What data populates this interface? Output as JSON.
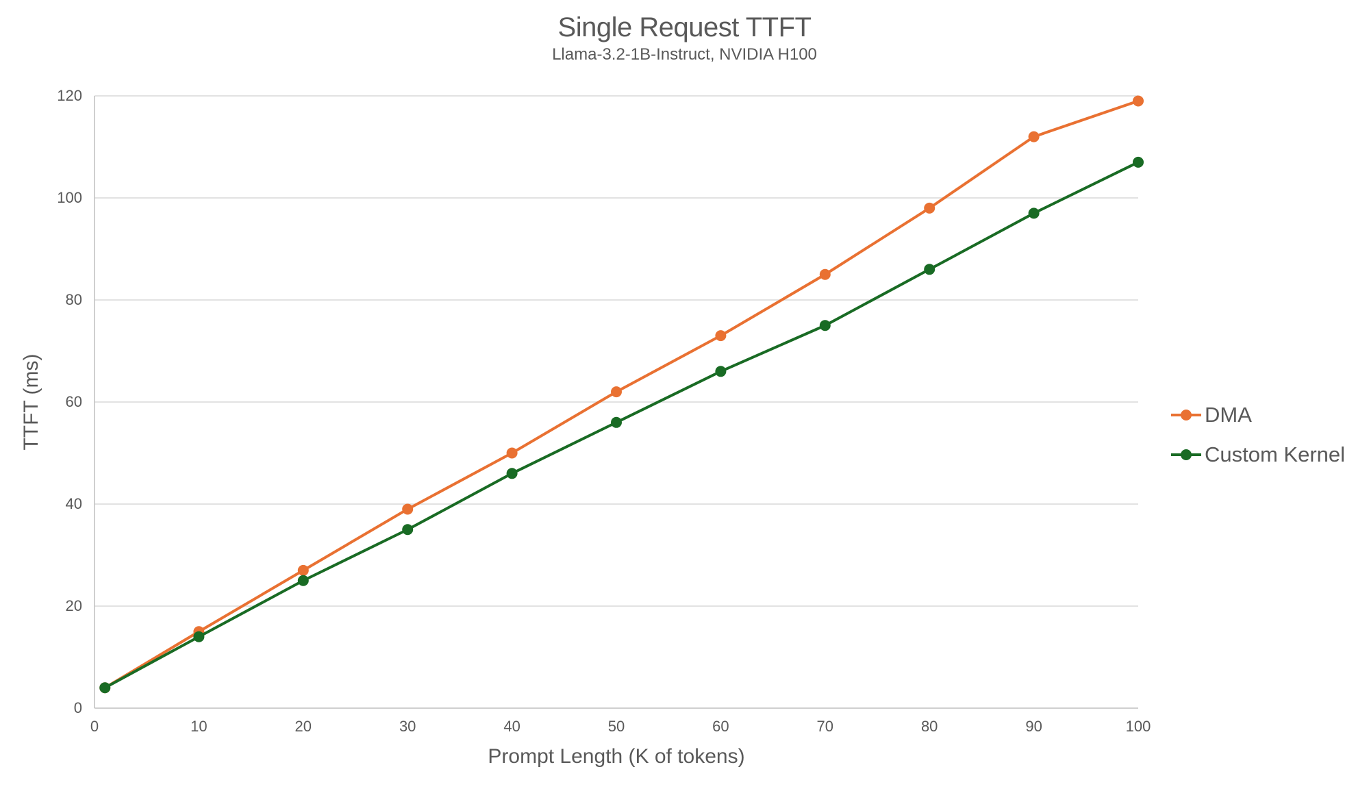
{
  "chart_data": {
    "type": "line",
    "title": "Single Request TTFT",
    "subtitle": "Llama-3.2-1B-Instruct, NVIDIA H100",
    "xlabel": "Prompt Length (K of tokens)",
    "ylabel": "TTFT (ms)",
    "x": [
      1,
      10,
      20,
      30,
      40,
      50,
      60,
      70,
      80,
      90,
      100
    ],
    "series": [
      {
        "name": "DMA",
        "color": "#E97132",
        "values": [
          4,
          15,
          27,
          39,
          50,
          62,
          73,
          85,
          98,
          112,
          119
        ]
      },
      {
        "name": "Custom Kernel",
        "color": "#196B24",
        "values": [
          4,
          14,
          25,
          35,
          46,
          56,
          66,
          75,
          86,
          97,
          107
        ]
      }
    ],
    "xlim": [
      0,
      100
    ],
    "ylim": [
      0,
      120
    ],
    "x_ticks": [
      0,
      10,
      20,
      30,
      40,
      50,
      60,
      70,
      80,
      90,
      100
    ],
    "y_ticks": [
      0,
      20,
      40,
      60,
      80,
      100,
      120
    ],
    "grid": "horizontal",
    "legend_position": "right",
    "marker": "circle",
    "colors": {
      "text": "#595959",
      "gridline": "#D9D9D9",
      "axis": "#BFBFBF",
      "background": "#FFFFFF"
    }
  }
}
